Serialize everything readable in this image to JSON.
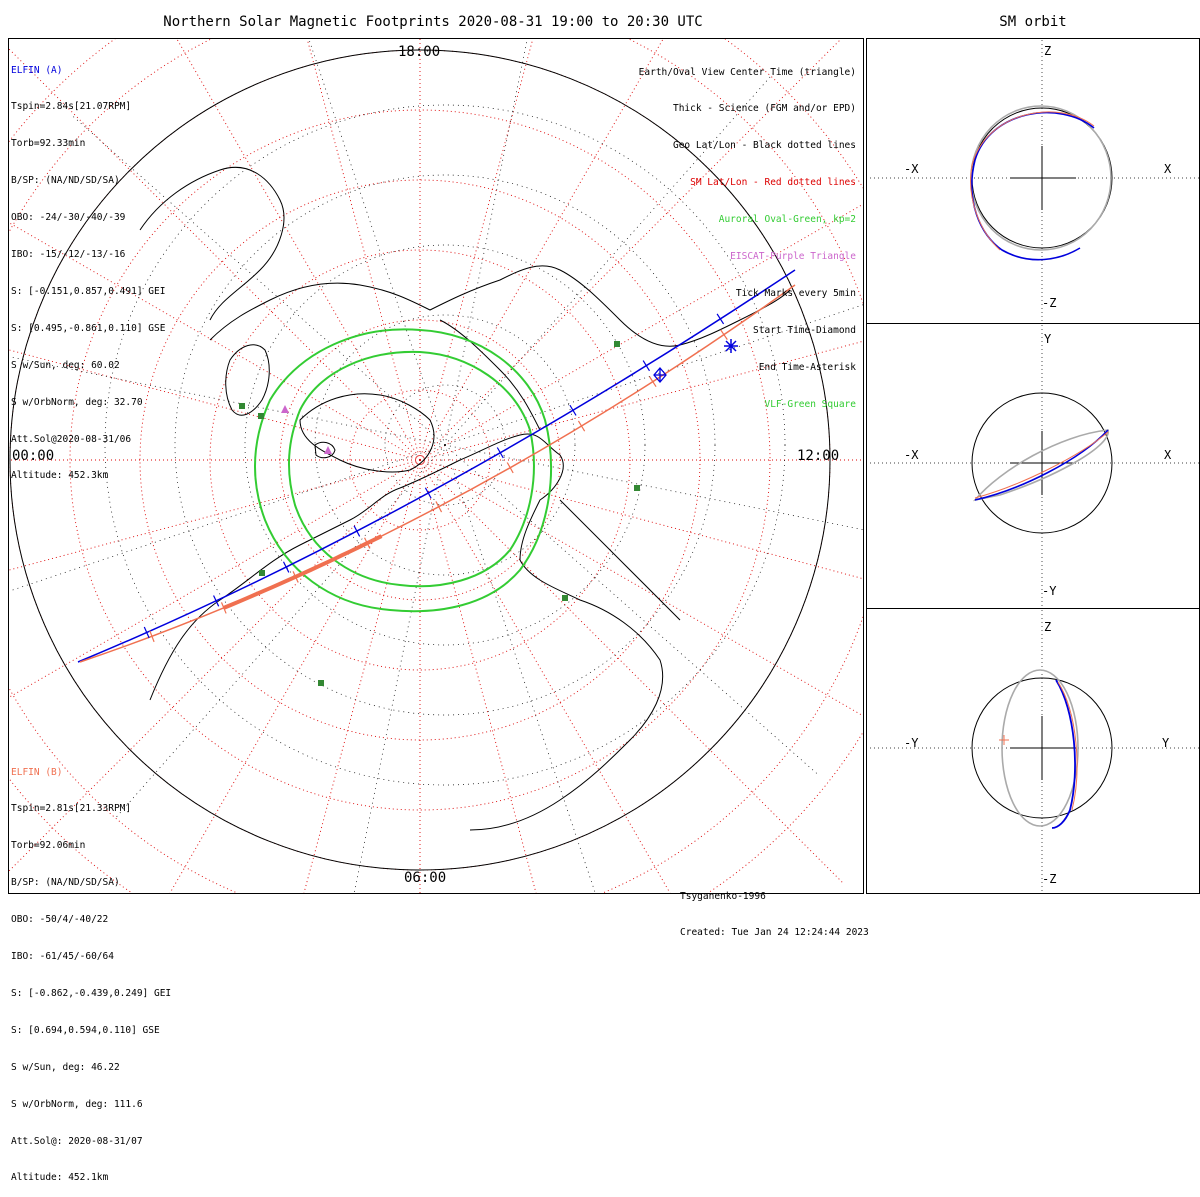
{
  "title": "Northern Solar Magnetic Footprints 2020-08-31 19:00 to 20:30 UTC",
  "sm_title": "SM orbit",
  "colors": {
    "sc_a": "#0000dd",
    "sc_b": "#f07050",
    "oval": "#33cc33",
    "sm_grid": "#dd0000",
    "geo_grid": "#000000",
    "eiscat": "#cc66cc",
    "vlf": "#338833",
    "orbit_other": "#aaaaaa"
  },
  "hour_labels": {
    "top": "18:00",
    "bottom": "06:00",
    "left": "00:00",
    "right": "12:00"
  },
  "elfin_a": {
    "header": "ELFIN (A)",
    "lines": [
      "Tspin=2.84s[21.07RPM]",
      "Torb=92.33min",
      "B/SP: (NA/ND/SD/SA)",
      "OBO: -24/-30/-40/-39",
      "IBO: -15/-12/-13/-16",
      "S: [-0.151,0.857,0.491] GEI",
      "S: [0.495,-0.861,0.110] GSE",
      "S w/Sun, deg: 60.02",
      "S w/OrbNorm, deg: 32.70",
      "Att.Sol@2020-08-31/06",
      "Altitude: 452.3km"
    ]
  },
  "elfin_b": {
    "header": "ELFIN (B)",
    "lines": [
      "Tspin=2.81s[21.33RPM]",
      "Torb=92.06min",
      "B/SP: (NA/ND/SD/SA)",
      "OBO: -50/4/-40/22",
      "IBO: -61/45/-60/64",
      "S: [-0.862,-0.439,0.249] GEI",
      "S: [0.694,0.594,0.110] GSE",
      "S w/Sun, deg: 46.22",
      "S w/OrbNorm, deg: 111.6",
      "Att.Sol@: 2020-08-31/07",
      "Altitude: 452.1km"
    ]
  },
  "legend": [
    {
      "text": "Earth/Oval View Center Time (triangle)",
      "color": "#000000"
    },
    {
      "text": "Thick - Science (FGM and/or EPD)",
      "color": "#000000"
    },
    {
      "text": "Geo Lat/Lon - Black dotted lines",
      "color": "#000000"
    },
    {
      "text": "SM Lat/Lon - Red dotted lines",
      "color": "#dd0000"
    },
    {
      "text": "Auroral Oval-Green, kp=2",
      "color": "#33cc33"
    },
    {
      "text": "EISCAT-Purple Triangle",
      "color": "#cc66cc"
    },
    {
      "text": "Tick Marks every 5min",
      "color": "#000000"
    },
    {
      "text": "Start Time-Diamond",
      "color": "#000000"
    },
    {
      "text": "End Time-Asterisk",
      "color": "#000000"
    },
    {
      "text": "VLF-Green Square",
      "color": "#33cc33"
    }
  ],
  "credit": {
    "model": "Tsyganenko-1996",
    "created": "Created: Tue Jan 24 12:24:44 2023"
  },
  "sm_panels": [
    {
      "h_neg": "-X",
      "h_pos": "X",
      "v_pos": "Z",
      "v_neg": "-Z"
    },
    {
      "h_neg": "-X",
      "h_pos": "X",
      "v_pos": "Y",
      "v_neg": "-Y"
    },
    {
      "h_neg": "-Y",
      "h_pos": "Y",
      "v_pos": "Z",
      "v_neg": "-Z"
    }
  ],
  "chart_data": [
    {
      "type": "polar map",
      "title": "Northern Solar Magnetic Footprints 2020-08-31 19:00 to 20:30 UTC",
      "coordinate": "SM magnetic local time / latitude",
      "mlt_labels": {
        "top": "18:00",
        "bottom": "06:00",
        "left": "00:00",
        "right": "12:00"
      },
      "mlat_circles_deg": [
        50,
        60,
        70,
        80
      ],
      "series": [
        {
          "name": "ELFIN (A)",
          "color": "#0000dd",
          "start": "diamond",
          "end": "asterisk",
          "tick_interval_min": 5
        },
        {
          "name": "ELFIN (B)",
          "color": "#f07050",
          "tick_interval_min": 5
        },
        {
          "name": "Auroral Oval-Green, kp=2",
          "color": "#33cc33"
        }
      ]
    },
    {
      "type": "line",
      "title": "SM orbit",
      "panels": [
        "X-Z",
        "X-Y",
        "Y-Z"
      ],
      "series": [
        {
          "name": "ELFIN (A)",
          "color": "#0000dd"
        },
        {
          "name": "ELFIN (B)",
          "color": "#f07050"
        }
      ]
    }
  ]
}
